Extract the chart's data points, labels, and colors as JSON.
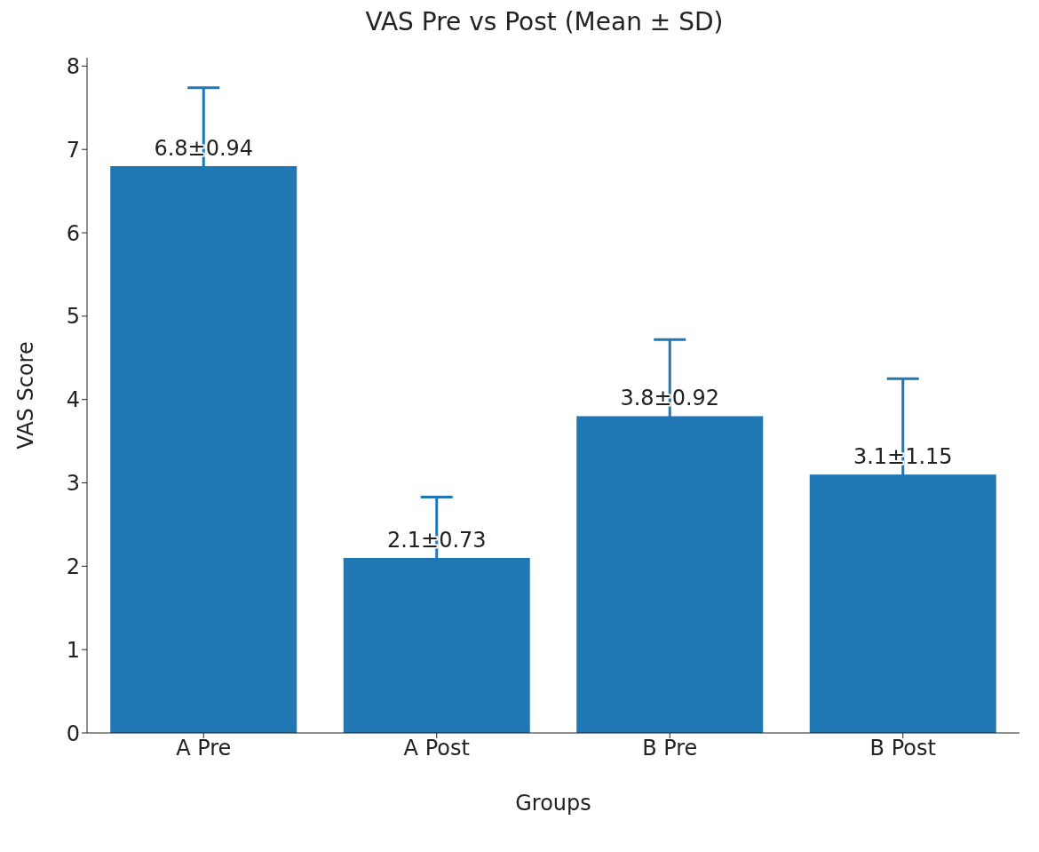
{
  "chart_data": {
    "type": "bar",
    "title": "VAS Pre vs Post (Mean ± SD)",
    "xlabel": "Groups",
    "ylabel": "VAS Score",
    "categories": [
      "A Pre",
      "A Post",
      "B Pre",
      "B Post"
    ],
    "values": [
      6.8,
      2.1,
      3.8,
      3.1
    ],
    "errors": [
      0.94,
      0.73,
      0.92,
      1.15
    ],
    "value_labels": [
      "6.8±0.94",
      "2.1±0.73",
      "3.8±0.92",
      "3.1±1.15"
    ],
    "color": "#1f77b4",
    "ylim": [
      0,
      8.1
    ],
    "yticks": [
      0,
      1,
      2,
      3,
      4,
      5,
      6,
      7,
      8
    ]
  }
}
